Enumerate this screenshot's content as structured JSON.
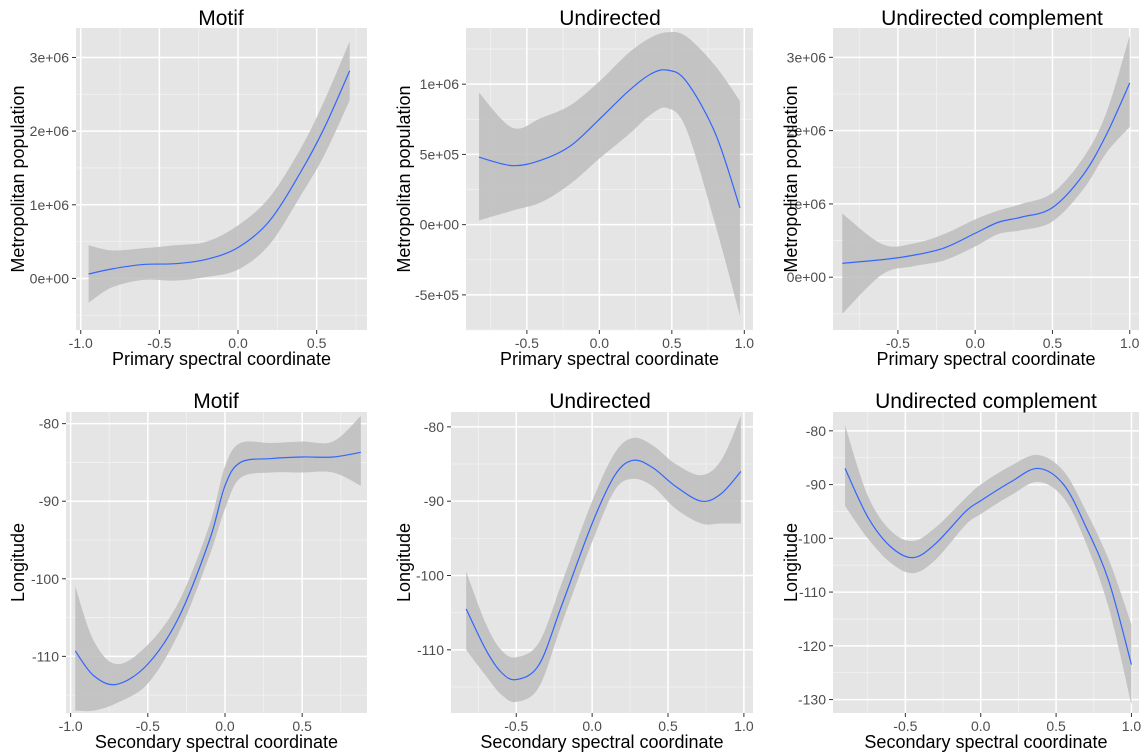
{
  "colors": {
    "panel_bg": "#e5e5e5",
    "grid_major": "#ffffff",
    "ribbon": "#bdbdbd",
    "line": "#3366ff",
    "tick_text": "#4d4d4d"
  },
  "chart_data": [
    {
      "type": "line",
      "title": "Motif",
      "xlabel": "Primary spectral coordinate",
      "ylabel": "Metropolitan population",
      "xlim": [
        -1.03,
        0.82
      ],
      "ylim": [
        -700000,
        3400000
      ],
      "xticks": [
        -1.0,
        -0.5,
        0.0,
        0.5
      ],
      "xtick_labels": [
        "-1.0",
        "-0.5",
        "0.0",
        "0.5"
      ],
      "yticks": [
        0,
        1000000,
        2000000,
        3000000
      ],
      "ytick_labels": [
        "0e+00",
        "1e+06",
        "2e+06",
        "3e+06"
      ],
      "series": [
        {
          "x": [
            -0.95,
            -0.8,
            -0.6,
            -0.4,
            -0.2,
            0.0,
            0.2,
            0.4,
            0.55,
            0.71
          ],
          "y": [
            60000,
            130000,
            190000,
            200000,
            260000,
            420000,
            780000,
            1450000,
            2050000,
            2820000
          ],
          "lower": [
            -330000,
            -120000,
            -20000,
            -30000,
            20000,
            120000,
            460000,
            1130000,
            1680000,
            2420000
          ],
          "upper": [
            450000,
            380000,
            410000,
            450000,
            500000,
            720000,
            1100000,
            1770000,
            2420000,
            3220000
          ]
        }
      ]
    },
    {
      "type": "line",
      "title": "Undirected",
      "xlabel": "Primary spectral coordinate",
      "ylabel": "Metropolitan population",
      "xlim": [
        -0.92,
        1.06
      ],
      "ylim": [
        -750000,
        1400000
      ],
      "xticks": [
        -0.5,
        0.0,
        0.5,
        1.0
      ],
      "xtick_labels": [
        "-0.5",
        "0.0",
        "0.5",
        "1.0"
      ],
      "yticks": [
        -500000,
        0,
        500000,
        1000000
      ],
      "ytick_labels": [
        "-5e+05",
        "0e+00",
        "5e+05",
        "1e+06"
      ],
      "series": [
        {
          "x": [
            -0.83,
            -0.6,
            -0.4,
            -0.2,
            0.0,
            0.2,
            0.35,
            0.47,
            0.6,
            0.8,
            0.97
          ],
          "y": [
            480000,
            420000,
            460000,
            560000,
            750000,
            950000,
            1070000,
            1100000,
            1020000,
            650000,
            120000
          ],
          "lower": [
            30000,
            100000,
            160000,
            290000,
            470000,
            640000,
            780000,
            830000,
            680000,
            0,
            -650000
          ],
          "upper": [
            940000,
            690000,
            760000,
            850000,
            1020000,
            1220000,
            1330000,
            1370000,
            1340000,
            1130000,
            880000
          ]
        }
      ]
    },
    {
      "type": "line",
      "title": "Undirected complement",
      "xlabel": "Primary spectral coordinate",
      "ylabel": "Metropolitan population",
      "xlim": [
        -0.92,
        1.06
      ],
      "ylim": [
        -720000,
        3400000
      ],
      "xticks": [
        -0.5,
        0.0,
        0.5,
        1.0
      ],
      "xtick_labels": [
        "-0.5",
        "0.0",
        "0.5",
        "1.0"
      ],
      "yticks": [
        0,
        1000000,
        2000000,
        3000000
      ],
      "ytick_labels": [
        "0e+00",
        "1e+06",
        "2e+06",
        "3e+06"
      ],
      "series": [
        {
          "x": [
            -0.86,
            -0.6,
            -0.4,
            -0.2,
            0.0,
            0.15,
            0.3,
            0.5,
            0.7,
            0.85,
            1.0
          ],
          "y": [
            190000,
            240000,
            300000,
            400000,
            600000,
            750000,
            820000,
            950000,
            1400000,
            1950000,
            2650000
          ],
          "lower": [
            -500000,
            40000,
            150000,
            230000,
            420000,
            590000,
            640000,
            760000,
            1200000,
            1700000,
            2050000
          ],
          "upper": [
            870000,
            450000,
            460000,
            590000,
            790000,
            910000,
            1000000,
            1150000,
            1630000,
            2250000,
            3300000
          ]
        }
      ]
    },
    {
      "type": "line",
      "title": "Motif",
      "xlabel": "Secondary spectral coordinate",
      "ylabel": "Longitude",
      "xlim": [
        -1.03,
        0.92
      ],
      "ylim": [
        -117.3,
        -78.5
      ],
      "xticks": [
        -1.0,
        -0.5,
        0.0,
        0.5
      ],
      "xtick_labels": [
        "-1.0",
        "-0.5",
        "0.0",
        "0.5"
      ],
      "yticks": [
        -110,
        -100,
        -90,
        -80
      ],
      "ytick_labels": [
        "-110",
        "-100",
        "-90",
        "-80"
      ],
      "series": [
        {
          "x": [
            -0.97,
            -0.85,
            -0.7,
            -0.5,
            -0.3,
            -0.1,
            0.0,
            0.1,
            0.3,
            0.5,
            0.7,
            0.88
          ],
          "y": [
            -109.3,
            -112.5,
            -113.6,
            -111.0,
            -105.0,
            -95.0,
            -88.0,
            -85.0,
            -84.5,
            -84.3,
            -84.3,
            -83.7
          ],
          "lower": [
            -117.0,
            -117.0,
            -116.0,
            -113.5,
            -107.0,
            -97.0,
            -91.0,
            -87.0,
            -86.3,
            -86.3,
            -86.3,
            -88.0
          ],
          "upper": [
            -101.0,
            -108.0,
            -111.0,
            -108.5,
            -103.0,
            -93.0,
            -85.5,
            -82.5,
            -82.5,
            -82.3,
            -82.3,
            -79.0
          ]
        }
      ]
    },
    {
      "type": "line",
      "title": "Undirected",
      "xlabel": "Secondary spectral coordinate",
      "ylabel": "Longitude",
      "xlim": [
        -0.93,
        1.06
      ],
      "ylim": [
        -118.5,
        -78.0
      ],
      "xticks": [
        -0.5,
        0.0,
        0.5,
        1.0
      ],
      "xtick_labels": [
        "-0.5",
        "0.0",
        "0.5",
        "1.0"
      ],
      "yticks": [
        -110,
        -100,
        -90,
        -80
      ],
      "ytick_labels": [
        "-110",
        "-100",
        "-90",
        "-80"
      ],
      "series": [
        {
          "x": [
            -0.83,
            -0.7,
            -0.6,
            -0.5,
            -0.35,
            -0.2,
            0.0,
            0.15,
            0.27,
            0.4,
            0.55,
            0.72,
            0.85,
            0.98
          ],
          "y": [
            -104.5,
            -110.0,
            -113.0,
            -114.0,
            -112.0,
            -104.0,
            -93.0,
            -86.5,
            -84.5,
            -85.5,
            -88.0,
            -90.0,
            -89.0,
            -86.0
          ],
          "lower": [
            -110.0,
            -113.5,
            -116.0,
            -117.0,
            -115.0,
            -106.5,
            -95.5,
            -88.5,
            -87.0,
            -88.0,
            -91.0,
            -93.0,
            -93.0,
            -93.0
          ],
          "upper": [
            -99.5,
            -106.5,
            -110.0,
            -111.0,
            -109.0,
            -101.0,
            -90.0,
            -83.5,
            -81.5,
            -82.5,
            -85.0,
            -86.5,
            -84.5,
            -78.5
          ]
        }
      ]
    },
    {
      "type": "line",
      "title": "Undirected complement",
      "xlabel": "Secondary spectral coordinate",
      "ylabel": "Longitude",
      "xlim": [
        -0.98,
        1.05
      ],
      "ylim": [
        -132.5,
        -76.5
      ],
      "xticks": [
        -0.5,
        0.0,
        0.5,
        1.0
      ],
      "xtick_labels": [
        "-0.5",
        "0.0",
        "0.5",
        "1.0"
      ],
      "yticks": [
        -130,
        -120,
        -110,
        -100,
        -90,
        -80
      ],
      "ytick_labels": [
        "-130",
        "-120",
        "-110",
        "-100",
        "-90",
        "-80"
      ],
      "series": [
        {
          "x": [
            -0.9,
            -0.75,
            -0.6,
            -0.45,
            -0.3,
            -0.1,
            0.0,
            0.2,
            0.38,
            0.55,
            0.7,
            0.85,
            1.0
          ],
          "y": [
            -87.0,
            -96.0,
            -101.5,
            -103.6,
            -101.0,
            -95.0,
            -93.0,
            -89.5,
            -87.0,
            -90.0,
            -98.0,
            -108.0,
            -123.5
          ],
          "lower": [
            -94.0,
            -100.0,
            -104.5,
            -106.5,
            -104.0,
            -97.5,
            -95.5,
            -92.0,
            -89.5,
            -92.5,
            -101.0,
            -113.0,
            -131.0
          ],
          "upper": [
            -79.0,
            -92.0,
            -98.5,
            -100.5,
            -98.0,
            -92.5,
            -90.0,
            -86.5,
            -84.5,
            -87.5,
            -95.0,
            -104.0,
            -116.0
          ]
        }
      ]
    }
  ]
}
